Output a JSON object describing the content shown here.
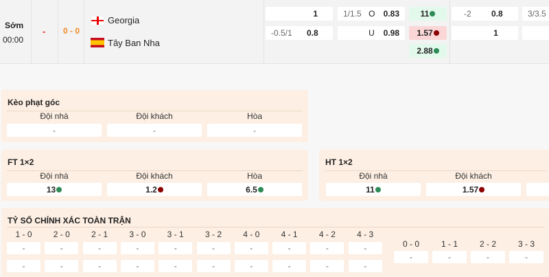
{
  "match": {
    "status": "Sớm",
    "time": "00:00",
    "red": "-",
    "score": "0 - 0",
    "home": "Georgia",
    "away": "Tây Ban Nha",
    "home_flag": "georgia-flag",
    "away_flag": "spain-flag"
  },
  "odds": {
    "r1": {
      "hdp_val": "1",
      "ou_line": "1/1.5",
      "ou_side": "O",
      "ou_val": "0.83",
      "x12": "11",
      "h1_line": "-2",
      "h1_val": "0.8",
      "h1_ou_line": "3/3.5"
    },
    "r2": {
      "hdp_line": "-0.5/1",
      "hdp_val": "0.8",
      "ou_side": "U",
      "ou_val": "0.98",
      "x12": "1.57",
      "h1_val": "1"
    },
    "r3": {
      "x12": "2.88"
    }
  },
  "colors": {
    "up": "#2e8b57",
    "down": "#8b0000",
    "section_bg": "#fdefe3",
    "score_orange": "#f08a24",
    "red": "#e02020"
  },
  "corner": {
    "title": "Kèo phạt góc",
    "labels": [
      "Đội nhà",
      "Đội khách",
      "Hòa"
    ],
    "values": [
      "-",
      "-",
      "-"
    ]
  },
  "ft": {
    "title": "FT 1×2",
    "labels": [
      "Đội nhà",
      "Đội khách",
      "Hòa"
    ],
    "values": [
      "13",
      "1.2",
      "6.5"
    ]
  },
  "ht": {
    "title": "HT 1×2",
    "labels": [
      "Đội nhà",
      "Đội khách"
    ],
    "values": [
      "11",
      "1.57"
    ]
  },
  "cs": {
    "title": "TỶ SỐ CHÍNH XÁC TOÀN TRẬN",
    "scores": [
      "1 - 0",
      "2 - 0",
      "2 - 1",
      "3 - 0",
      "3 - 1",
      "3 - 2",
      "4 - 0",
      "4 - 1",
      "4 - 2",
      "4 - 3"
    ],
    "row1": [
      "-",
      "-",
      "-",
      "-",
      "-",
      "-",
      "-",
      "-",
      "-",
      "-"
    ],
    "row2": [
      "-",
      "-",
      "-",
      "-",
      "-",
      "-",
      "-",
      "-",
      "-",
      "-"
    ],
    "draws": [
      "0 - 0",
      "1 - 1",
      "2 - 2",
      "3 - 3"
    ],
    "draw_vals": [
      "-",
      "-",
      "-",
      "-"
    ]
  }
}
